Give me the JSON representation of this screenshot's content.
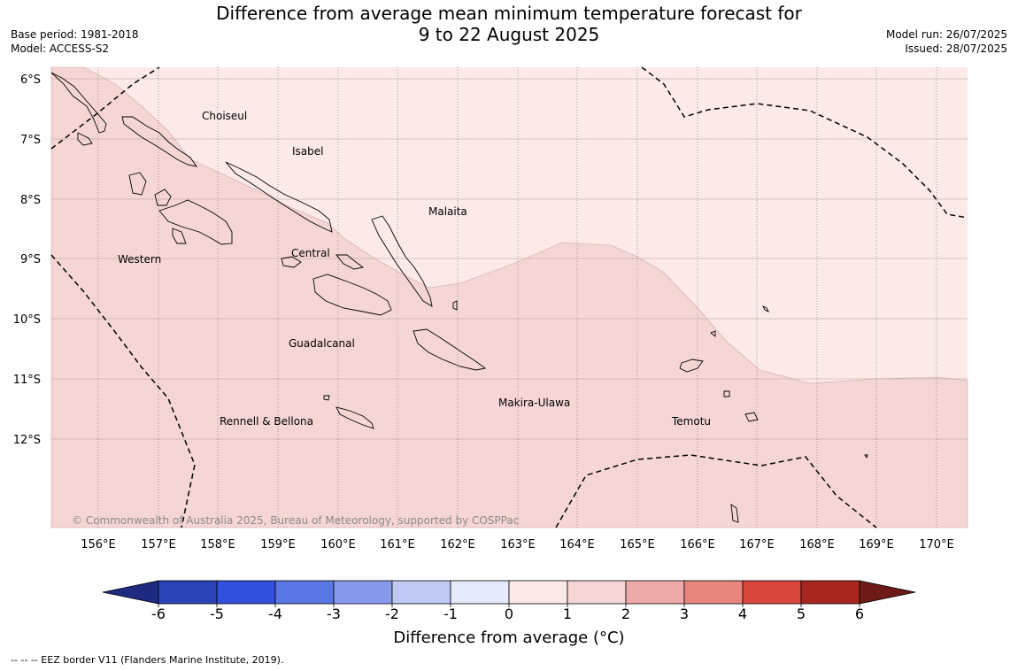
{
  "title": {
    "line1": "Difference from average mean minimum temperature forecast for",
    "line2": "9 to 22 August 2025"
  },
  "meta_left": {
    "base_period": "Base period: 1981-2018",
    "model": "Model: ACCESS-S2"
  },
  "meta_right": {
    "model_run": "Model run: 26/07/2025",
    "issued": "Issued: 28/07/2025"
  },
  "map": {
    "lat_labels": [
      "6°S",
      "7°S",
      "8°S",
      "9°S",
      "10°S",
      "11°S",
      "12°S"
    ],
    "lon_labels": [
      "156°E",
      "157°E",
      "158°E",
      "159°E",
      "160°E",
      "161°E",
      "162°E",
      "163°E",
      "164°E",
      "165°E",
      "166°E",
      "167°E",
      "168°E",
      "169°E",
      "170°E"
    ],
    "province_labels": [
      "Choiseul",
      "Isabel",
      "Malaita",
      "Western",
      "Central",
      "Guadalcanal",
      "Makira-Ulawa",
      "Rennell & Bellona",
      "Temotu"
    ],
    "copyright": "© Commonwealth of Australia 2025, Bureau of Meteorology, supported by COSPPac",
    "fill_colors": {
      "band_0_to_1": "#fbeae8",
      "band_1_to_2": "#f5d6d4"
    }
  },
  "colorbar": {
    "ticks": [
      "-6",
      "-5",
      "-4",
      "-3",
      "-2",
      "-1",
      "0",
      "1",
      "2",
      "3",
      "4",
      "5",
      "6"
    ],
    "colors": [
      "#1d2a80",
      "#2a44b8",
      "#3250de",
      "#5a76e2",
      "#8799ec",
      "#c0c9f4",
      "#e6eafc",
      "#fbeae8",
      "#f5d6d4",
      "#eeaaa8",
      "#e6867e",
      "#d9463e",
      "#a82620",
      "#6e1a16"
    ],
    "label": "Difference from average (°C)"
  },
  "footnote": "--  --  -- EEZ border V11 (Flanders Marine Institute, 2019)."
}
